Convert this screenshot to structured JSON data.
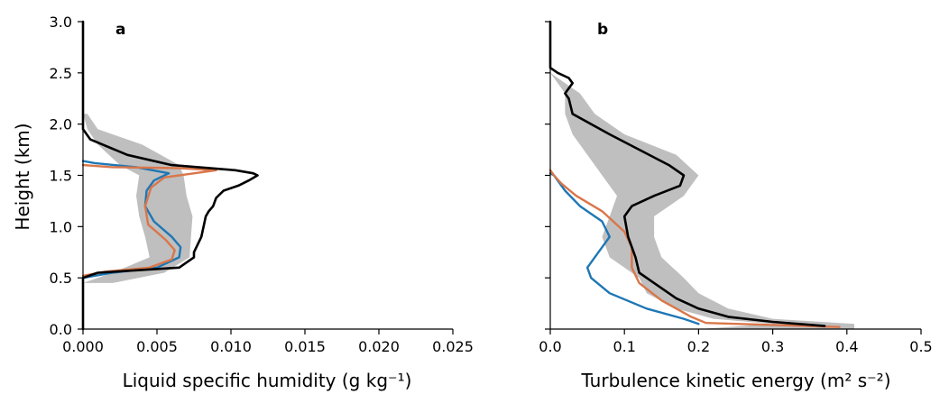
{
  "figure": {
    "ylabel": "Height (km)",
    "y_ticks": [
      "0.0",
      "0.5",
      "1.0",
      "1.5",
      "2.0",
      "2.5",
      "3.0"
    ],
    "ylim": [
      0,
      3.0
    ]
  },
  "chart_data": [
    {
      "type": "line",
      "panel_label": "a",
      "xlabel": "Liquid specific humidity  (g kg⁻¹)",
      "xlim": [
        0,
        0.025
      ],
      "ylim": [
        0,
        3.0
      ],
      "x_ticks": [
        "0.000",
        "0.005",
        "0.010",
        "0.015",
        "0.020",
        "0.025"
      ],
      "band": {
        "color": "#bfbfbf",
        "y": [
          0.45,
          0.55,
          0.7,
          0.9,
          1.1,
          1.3,
          1.5,
          1.6,
          1.8,
          1.95,
          2.1
        ],
        "low": [
          0.0,
          0.002,
          0.0045,
          0.0042,
          0.0038,
          0.0036,
          0.0038,
          0.0025,
          0.001,
          0.0003,
          0.0
        ],
        "high": [
          0.002,
          0.0055,
          0.0072,
          0.0073,
          0.0074,
          0.007,
          0.0068,
          0.0065,
          0.004,
          0.001,
          0.0003
        ]
      },
      "series": [
        {
          "color": "#000000",
          "x": [
            0,
            0,
            0.001,
            0.0065,
            0.0075,
            0.0075,
            0.008,
            0.0083,
            0.0085,
            0.0088,
            0.009,
            0.0095,
            0.0105,
            0.0112,
            0.0118,
            0.0115,
            0.0103,
            0.006,
            0.003,
            0.0005,
            0,
            0
          ],
          "y": [
            0,
            0.5,
            0.55,
            0.6,
            0.7,
            0.75,
            0.9,
            1.1,
            1.15,
            1.2,
            1.28,
            1.35,
            1.4,
            1.45,
            1.5,
            1.52,
            1.55,
            1.6,
            1.7,
            1.85,
            1.95,
            3.0
          ]
        },
        {
          "color": "#1f77b4",
          "x": [
            0.0,
            0.002,
            0.005,
            0.0065,
            0.0066,
            0.006,
            0.0048,
            0.0042,
            0.0043,
            0.0048,
            0.0058,
            0.0036,
            0.0008,
            0.0
          ],
          "y": [
            0.5,
            0.55,
            0.6,
            0.7,
            0.8,
            0.9,
            1.05,
            1.2,
            1.35,
            1.45,
            1.52,
            1.58,
            1.62,
            1.64
          ]
        },
        {
          "color": "#d9764a",
          "x": [
            0.0,
            0.0015,
            0.0045,
            0.006,
            0.0062,
            0.0056,
            0.0044,
            0.0042,
            0.0046,
            0.0055,
            0.009,
            0.0065,
            0.002,
            0.0
          ],
          "y": [
            0.52,
            0.56,
            0.6,
            0.68,
            0.77,
            0.87,
            1.02,
            1.2,
            1.38,
            1.48,
            1.55,
            1.57,
            1.58,
            1.6
          ]
        }
      ]
    },
    {
      "type": "line",
      "panel_label": "b",
      "xlabel": "Turbulence kinetic energy  (m² s⁻²)",
      "xlim": [
        0,
        0.5
      ],
      "ylim": [
        0,
        3.0
      ],
      "x_ticks": [
        "0.0",
        "0.1",
        "0.2",
        "0.3",
        "0.4",
        "0.5"
      ],
      "band": {
        "color": "#bfbfbf",
        "y": [
          0.0,
          0.05,
          0.1,
          0.2,
          0.35,
          0.5,
          0.7,
          0.9,
          1.1,
          1.3,
          1.5,
          1.7,
          1.9,
          2.1,
          2.3,
          2.5
        ],
        "low": [
          0.2,
          0.3,
          0.22,
          0.17,
          0.13,
          0.12,
          0.08,
          0.07,
          0.08,
          0.09,
          0.07,
          0.05,
          0.03,
          0.02,
          0.02,
          0.0
        ],
        "high": [
          0.41,
          0.41,
          0.3,
          0.24,
          0.2,
          0.18,
          0.15,
          0.14,
          0.14,
          0.18,
          0.2,
          0.17,
          0.1,
          0.06,
          0.04,
          0.0
        ]
      },
      "series": [
        {
          "color": "#000000",
          "x": [
            0.37,
            0.3,
            0.24,
            0.2,
            0.17,
            0.14,
            0.12,
            0.115,
            0.11,
            0.105,
            0.1,
            0.11,
            0.14,
            0.175,
            0.18,
            0.16,
            0.08,
            0.03,
            0.025,
            0.02,
            0.03,
            0.025,
            0.01,
            0.0,
            0.0
          ],
          "y": [
            0.03,
            0.07,
            0.12,
            0.2,
            0.3,
            0.45,
            0.55,
            0.7,
            0.8,
            0.9,
            1.1,
            1.2,
            1.3,
            1.4,
            1.5,
            1.6,
            1.9,
            2.1,
            2.25,
            2.3,
            2.4,
            2.45,
            2.5,
            2.55,
            3.0
          ]
        },
        {
          "color": "#1f77b4",
          "x": [
            0.2,
            0.18,
            0.13,
            0.08,
            0.055,
            0.05,
            0.06,
            0.08,
            0.07,
            0.04,
            0.02,
            0.01,
            0.005,
            0.0
          ],
          "y": [
            0.05,
            0.1,
            0.2,
            0.35,
            0.5,
            0.6,
            0.7,
            0.9,
            1.05,
            1.2,
            1.35,
            1.45,
            1.5,
            1.52
          ]
        },
        {
          "color": "#d9764a",
          "x": [
            0.39,
            0.21,
            0.19,
            0.15,
            0.12,
            0.11,
            0.11,
            0.1,
            0.07,
            0.035,
            0.015,
            0.005,
            0.0
          ],
          "y": [
            0.02,
            0.06,
            0.12,
            0.28,
            0.45,
            0.6,
            0.8,
            0.95,
            1.15,
            1.3,
            1.42,
            1.5,
            1.55
          ]
        }
      ]
    }
  ]
}
